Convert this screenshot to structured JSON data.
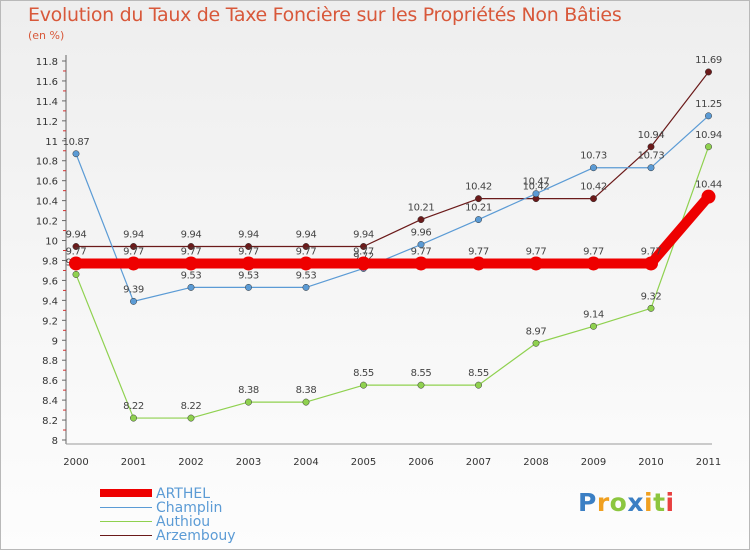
{
  "chart_data": {
    "type": "line",
    "title": "Evolution du Taux de Taxe Foncière sur les Propriétés Non Bâties",
    "subtitle": "(en %)",
    "x": [
      "2000",
      "2001",
      "2002",
      "2003",
      "2004",
      "2005",
      "2006",
      "2007",
      "2008",
      "2009",
      "2010",
      "2011"
    ],
    "y_ticks": [
      "8",
      "8.2",
      "8.4",
      "8.6",
      "8.8",
      "9",
      "9.2",
      "9.4",
      "9.6",
      "9.8",
      "10",
      "10.2",
      "10.4",
      "10.6",
      "10.8",
      "11",
      "11.2",
      "11.4",
      "11.6",
      "11.8"
    ],
    "ylim": [
      8,
      11.8
    ],
    "series": [
      {
        "name": "Arzembouy",
        "color": "#6b1a1a",
        "values": [
          9.94,
          9.94,
          9.94,
          9.94,
          9.94,
          9.94,
          10.21,
          10.42,
          10.42,
          10.42,
          10.94,
          11.69
        ],
        "labels": [
          "9.94",
          "9.94",
          "9.94",
          "9.94",
          "9.94",
          "9.94",
          "10.21",
          "10.42",
          "10.42",
          "10.42",
          "10.94",
          "11.69"
        ]
      },
      {
        "name": "Champlin",
        "color": "#5b9bd5",
        "values": [
          10.87,
          9.39,
          9.53,
          9.53,
          9.53,
          9.72,
          9.96,
          10.21,
          10.47,
          10.73,
          10.73,
          11.25
        ],
        "labels": [
          "10.87",
          "9.39",
          "9.53",
          "9.53",
          "9.53",
          "9.72",
          "9.96",
          "10.21",
          "10.47",
          "10.73",
          "10.73",
          "11.25"
        ]
      },
      {
        "name": "Authiou",
        "color": "#8fd14f",
        "values": [
          9.66,
          8.22,
          8.22,
          8.38,
          8.38,
          8.55,
          8.55,
          8.55,
          8.97,
          9.14,
          9.32,
          10.94
        ],
        "labels": [
          "9.66",
          "8.22",
          "8.22",
          "8.38",
          "8.38",
          "8.55",
          "8.55",
          "8.55",
          "8.97",
          "9.14",
          "9.32",
          "10.94"
        ]
      },
      {
        "name": "ARTHEL",
        "color": "#ee0000",
        "values": [
          9.77,
          9.77,
          9.77,
          9.77,
          9.77,
          9.77,
          9.77,
          9.77,
          9.77,
          9.77,
          9.77,
          10.44
        ],
        "labels": [
          "9.77",
          "9.77",
          "9.77",
          "9.77",
          "9.77",
          "9.77",
          "9.77",
          "9.77",
          "9.77",
          "9.77",
          "9.77",
          "10.44"
        ]
      }
    ]
  },
  "legend": [
    {
      "name": "ARTHEL",
      "color": "#ee0000"
    },
    {
      "name": "Champlin",
      "color": "#5b9bd5"
    },
    {
      "name": "Authiou",
      "color": "#8fd14f"
    },
    {
      "name": "Arzembouy",
      "color": "#6b1a1a"
    }
  ],
  "logo": {
    "text": "Proxiti",
    "letters": [
      {
        "ch": "P",
        "color": "#3b7fc4"
      },
      {
        "ch": "r",
        "color": "#f0a020"
      },
      {
        "ch": "o",
        "color": "#8cc63f"
      },
      {
        "ch": "x",
        "color": "#3b7fc4"
      },
      {
        "ch": "i",
        "color": "#f0a020"
      },
      {
        "ch": "t",
        "color": "#8cc63f"
      },
      {
        "ch": "i",
        "color": "#e84040"
      }
    ]
  }
}
